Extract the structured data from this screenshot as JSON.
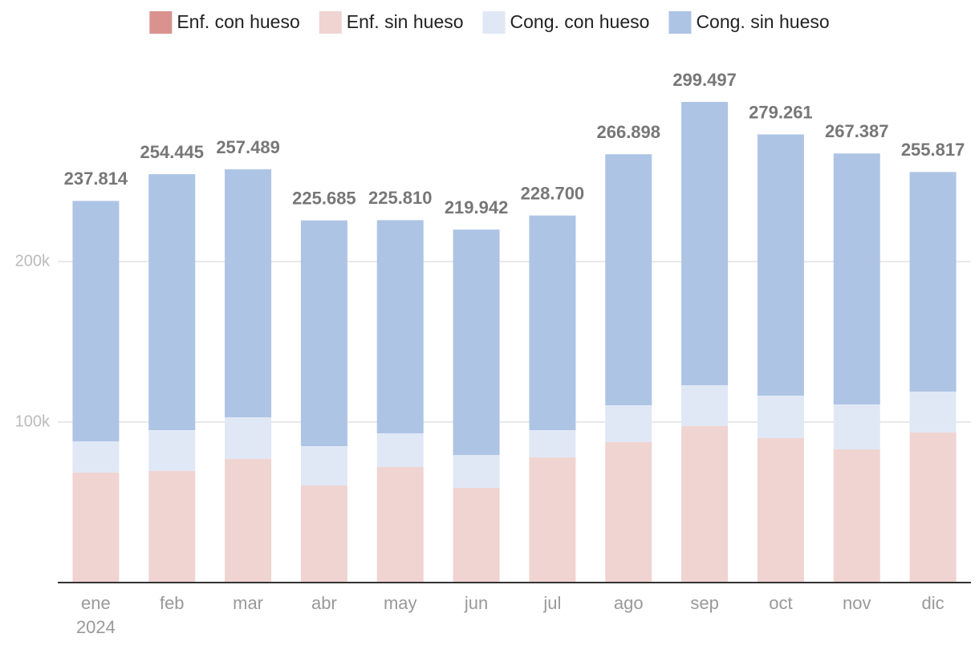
{
  "chart_data": {
    "type": "stacked_bar",
    "categories": [
      "ene",
      "feb",
      "mar",
      "abr",
      "may",
      "jun",
      "jul",
      "ago",
      "sep",
      "oct",
      "nov",
      "dic"
    ],
    "x_sublabel": "2024",
    "series": [
      {
        "name": "Enf. con hueso",
        "color": "#d9928e",
        "values": [
          0,
          0,
          0,
          0,
          0,
          0,
          0,
          0,
          0,
          0,
          0,
          0
        ]
      },
      {
        "name": "Enf. sin hueso",
        "color": "#f0d4d2",
        "values": [
          68500,
          69500,
          77000,
          60500,
          72000,
          59000,
          78000,
          87500,
          97500,
          90000,
          83000,
          93500
        ]
      },
      {
        "name": "Cong. con hueso",
        "color": "#e0e8f6",
        "values": [
          19500,
          25500,
          26000,
          24500,
          21000,
          20500,
          17000,
          23000,
          25500,
          26500,
          28000,
          25500
        ]
      },
      {
        "name": "Cong. sin hueso",
        "color": "#aec4e5",
        "values": [
          149814,
          159445,
          154489,
          140685,
          132810,
          140442,
          133700,
          156398,
          176497,
          162761,
          156387,
          136817
        ]
      }
    ],
    "totals": {
      "values": [
        237814,
        254445,
        257489,
        225685,
        225810,
        219942,
        228700,
        266898,
        299497,
        279261,
        267387,
        255817
      ],
      "value_labels": [
        "237.814",
        "254.445",
        "257.489",
        "225.685",
        "225.810",
        "219.942",
        "228.700",
        "266.898",
        "299.497",
        "279.261",
        "267.387",
        "255.817"
      ]
    },
    "ylim": [
      0,
      300000
    ],
    "yticks": [
      {
        "value": 100000,
        "label": "100k"
      },
      {
        "value": 200000,
        "label": "200k"
      }
    ],
    "grid": true,
    "legend": "top"
  }
}
